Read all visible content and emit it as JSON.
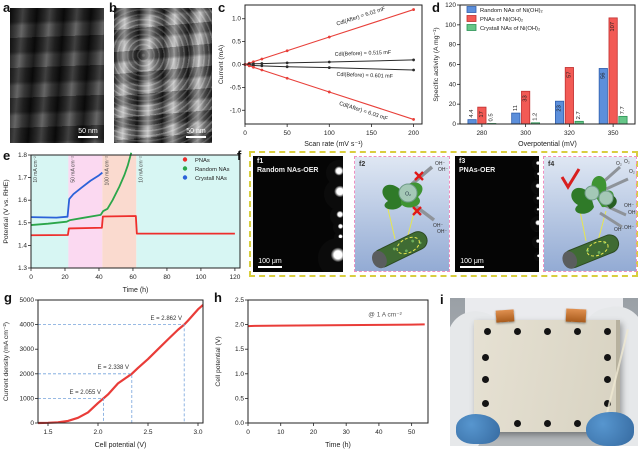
{
  "letters": {
    "a": "a",
    "b": "b",
    "c": "c",
    "d": "d",
    "e": "e",
    "f": "f",
    "g": "g",
    "h": "h",
    "i": "i"
  },
  "panel_a": {
    "scale_bar": "50 nm"
  },
  "panel_b": {
    "scale_bar": "50 nm"
  },
  "panel_f": {
    "f1": {
      "label": "f1",
      "title": "Random NAs-OER",
      "scale_bar": "100 μm"
    },
    "f2": {
      "label": "f2",
      "oh": "OH⁻",
      "o2": "O₂"
    },
    "f3": {
      "label": "f3",
      "title": "PNAs-OER",
      "scale_bar": "100 μm"
    },
    "f4": {
      "label": "f4",
      "oh": "OH⁻",
      "o2": "O₂"
    }
  },
  "chart_data": [
    {
      "id": "c",
      "type": "scatter",
      "title": "",
      "xlabel": "Scan rate (mV s⁻¹)",
      "ylabel": "Current (mA)",
      "xlim": [
        0,
        210
      ],
      "ylim": [
        -1.3,
        1.3
      ],
      "xticks": [
        0,
        50,
        100,
        150,
        200
      ],
      "yticks": [
        -1.0,
        -0.5,
        0.0,
        0.5,
        1.0
      ],
      "xdec": 0,
      "ydec": 1,
      "margins": {
        "l": 30,
        "r": 8,
        "t": 5,
        "b": 25
      },
      "series": [
        {
          "name": "Cdl(After) anodic",
          "color": "#e8403a",
          "marker": true,
          "width": 1.1,
          "points": [
            [
              0,
              0
            ],
            [
              5,
              0.03
            ],
            [
              10,
              0.06
            ],
            [
              20,
              0.12
            ],
            [
              50,
              0.3
            ],
            [
              100,
              0.6
            ],
            [
              200,
              1.2
            ]
          ]
        },
        {
          "name": "Cdl(Before) anodic",
          "color": "#2b2b2b",
          "marker": true,
          "width": 1.0,
          "points": [
            [
              0,
              0
            ],
            [
              5,
              0.01
            ],
            [
              10,
              0.015
            ],
            [
              20,
              0.02
            ],
            [
              50,
              0.035
            ],
            [
              100,
              0.055
            ],
            [
              200,
              0.1
            ]
          ]
        },
        {
          "name": "Cdl(Before) cathodic",
          "color": "#2b2b2b",
          "marker": true,
          "width": 1.0,
          "points": [
            [
              0,
              0
            ],
            [
              5,
              -0.012
            ],
            [
              10,
              -0.02
            ],
            [
              20,
              -0.03
            ],
            [
              50,
              -0.048
            ],
            [
              100,
              -0.068
            ],
            [
              200,
              -0.12
            ]
          ]
        },
        {
          "name": "Cdl(After) cathodic",
          "color": "#e8403a",
          "marker": true,
          "width": 1.1,
          "points": [
            [
              0,
              0
            ],
            [
              5,
              -0.03
            ],
            [
              10,
              -0.06
            ],
            [
              20,
              -0.12
            ],
            [
              50,
              -0.3
            ],
            [
              100,
              -0.6
            ],
            [
              200,
              -1.2
            ]
          ]
        }
      ],
      "annotations": [
        {
          "x": 138,
          "y": 1.02,
          "text": "Cdl(After) = 6.02 mF",
          "rotate": -18,
          "size": 5.6,
          "color": "#222"
        },
        {
          "x": 140,
          "y": 0.21,
          "text": "Cdl(Before) = 0.515 mF",
          "rotate": -2,
          "size": 5.4,
          "color": "#222"
        },
        {
          "x": 142,
          "y": -0.27,
          "text": "Cdl(Before) = 0.601 mF",
          "rotate": 2,
          "size": 5.4,
          "color": "#222"
        },
        {
          "x": 140,
          "y": -1.05,
          "text": "Cdl(After) = 6.03 mF",
          "rotate": 18,
          "size": 5.6,
          "color": "#222"
        }
      ]
    },
    {
      "id": "d",
      "type": "bar",
      "title": "",
      "xlabel": "Overpotential (mV)",
      "ylabel": "Specific activity (A mg⁻¹)",
      "categories": [
        "280",
        "300",
        "320",
        "350"
      ],
      "xlim": [
        0,
        1
      ],
      "ylim": [
        0,
        120
      ],
      "yticks": [
        0,
        20,
        40,
        60,
        80,
        100,
        120
      ],
      "ydec": 0,
      "margins": {
        "l": 30,
        "r": 5,
        "t": 5,
        "b": 25
      },
      "series": [
        {
          "name": "Random NAs of Ni(OH)₂",
          "color": "#5c8fdb",
          "border": "#2f5fae",
          "values": [
            4.4,
            11,
            23,
            56
          ],
          "value_labels": [
            "4.4",
            "11",
            "23",
            "56"
          ]
        },
        {
          "name": "PNAs of Ni(OH)₂",
          "color": "#f25a55",
          "border": "#c03030",
          "values": [
            17,
            33,
            57,
            107
          ],
          "value_labels": [
            "17",
            "33",
            "57",
            "107"
          ]
        },
        {
          "name": "Crystall NAs of Ni(OH)₂",
          "color": "#66c688",
          "border": "#2c9355",
          "values": [
            0.5,
            1.2,
            2.7,
            7.7
          ],
          "value_labels": [
            "0.5",
            "1.2",
            "2.7",
            "7.7"
          ]
        }
      ],
      "legend": {
        "pos": "tl",
        "marker": "square",
        "w": 92,
        "items": [
          {
            "label": "Random NAs of Ni(OH)₂",
            "color": "#5c8fdb",
            "border": "#2f5fae"
          },
          {
            "label": "PNAs of Ni(OH)₂",
            "color": "#f25a55",
            "border": "#c03030"
          },
          {
            "label": "Crystall NAs of Ni(OH)₂",
            "color": "#66c688",
            "border": "#2c9355"
          }
        ]
      }
    },
    {
      "id": "e",
      "type": "line",
      "title": "",
      "xlabel": "Time (h)",
      "ylabel": "Potential (V vs. RHE)",
      "xlim": [
        0,
        123
      ],
      "ylim": [
        1.3,
        1.8
      ],
      "xticks": [
        0,
        20,
        40,
        60,
        80,
        100,
        120
      ],
      "yticks": [
        1.3,
        1.4,
        1.5,
        1.6,
        1.7,
        1.8
      ],
      "xdec": 0,
      "ydec": 1,
      "margins": {
        "l": 31,
        "r": 6,
        "t": 5,
        "b": 27
      },
      "regions": [
        {
          "x0": 0,
          "x1": 22,
          "color": "#d7f6f3",
          "label": "10 mA cm⁻²"
        },
        {
          "x0": 22,
          "x1": 42,
          "color": "#fbd9f1",
          "label": "50 mA cm⁻²"
        },
        {
          "x0": 42,
          "x1": 62,
          "color": "#fadacf",
          "label": "100 mA cm⁻²"
        },
        {
          "x0": 62,
          "x1": 123,
          "color": "#d7f6f3",
          "label": "10 mA cm⁻²"
        }
      ],
      "series": [
        {
          "name": "PNAs",
          "color": "#ee2e2c",
          "width": 1.8,
          "points": [
            [
              0,
              1.445
            ],
            [
              21.7,
              1.446
            ],
            [
              22.3,
              1.475
            ],
            [
              41.7,
              1.478
            ],
            [
              42.3,
              1.528
            ],
            [
              61.7,
              1.53
            ],
            [
              62.3,
              1.452
            ],
            [
              120,
              1.452
            ]
          ]
        },
        {
          "name": "Random NAs",
          "color": "#2ba64a",
          "width": 1.8,
          "points": [
            [
              0,
              1.49
            ],
            [
              10,
              1.496
            ],
            [
              21,
              1.505
            ],
            [
              23,
              1.512
            ],
            [
              30,
              1.521
            ],
            [
              41,
              1.535
            ],
            [
              42.5,
              1.552
            ],
            [
              45,
              1.562
            ],
            [
              48,
              1.6
            ],
            [
              52,
              1.66
            ],
            [
              55,
              1.712
            ],
            [
              57,
              1.755
            ],
            [
              59,
              1.81
            ]
          ]
        },
        {
          "name": "Crystall NAs",
          "color": "#2b62d9",
          "width": 1.8,
          "points": [
            [
              0,
              1.525
            ],
            [
              15,
              1.523
            ],
            [
              21.5,
              1.527
            ],
            [
              22.5,
              1.605
            ],
            [
              25,
              1.627
            ],
            [
              30,
              1.657
            ],
            [
              35,
              1.686
            ],
            [
              40,
              1.71
            ],
            [
              42,
              1.722
            ]
          ]
        }
      ],
      "legend": {
        "pos": "tr",
        "marker": "dot",
        "w": 58,
        "items": [
          {
            "label": "PNAs",
            "color": "#ee2e2c"
          },
          {
            "label": "Random NAs",
            "color": "#2ba64a"
          },
          {
            "label": "Crystall NAs",
            "color": "#2b62d9"
          }
        ]
      },
      "annotations": [
        {
          "x": 3.5,
          "y": 1.795,
          "text": "10 mA cm⁻²",
          "rotate": -90,
          "anchor": "end",
          "size": 5,
          "color": "#444"
        },
        {
          "x": 25.5,
          "y": 1.795,
          "text": "50 mA cm⁻²",
          "rotate": -90,
          "anchor": "end",
          "size": 5,
          "color": "#444"
        },
        {
          "x": 45.5,
          "y": 1.795,
          "text": "100 mA cm⁻²",
          "rotate": -90,
          "anchor": "end",
          "size": 5,
          "color": "#444"
        },
        {
          "x": 65.5,
          "y": 1.795,
          "text": "10 mA cm⁻²",
          "rotate": -90,
          "anchor": "end",
          "size": 5,
          "color": "#444"
        }
      ]
    },
    {
      "id": "g",
      "type": "line",
      "title": "",
      "xlabel": "Cell potential (V)",
      "ylabel": "Current density (mA cm⁻²)",
      "xlim": [
        1.4,
        3.05
      ],
      "ylim": [
        0,
        5000
      ],
      "xticks": [
        1.5,
        2.0,
        2.5,
        3.0
      ],
      "yticks": [
        0,
        1000,
        2000,
        3000,
        4000,
        5000
      ],
      "xdec": 1,
      "ydec": 0,
      "margins": {
        "l": 38,
        "r": 9,
        "t": 8,
        "b": 27
      },
      "guide_color": "#76a3dc",
      "guides": [
        {
          "x": 2.055,
          "y": 1000
        },
        {
          "x": 2.338,
          "y": 2000
        },
        {
          "x": 2.862,
          "y": 4000
        }
      ],
      "series": [
        {
          "name": "polarization curve",
          "color": "#e93c38",
          "width": 2.2,
          "points": [
            [
              1.4,
              0
            ],
            [
              1.5,
              8
            ],
            [
              1.6,
              25
            ],
            [
              1.7,
              85
            ],
            [
              1.8,
              210
            ],
            [
              1.9,
              430
            ],
            [
              2.0,
              810
            ],
            [
              2.055,
              1000
            ],
            [
              2.1,
              1160
            ],
            [
              2.2,
              1610
            ],
            [
              2.338,
              2000
            ],
            [
              2.4,
              2240
            ],
            [
              2.5,
              2600
            ],
            [
              2.6,
              3000
            ],
            [
              2.7,
              3400
            ],
            [
              2.8,
              3790
            ],
            [
              2.862,
              4000
            ],
            [
              2.9,
              4160
            ],
            [
              3.0,
              4620
            ],
            [
              3.05,
              4800
            ]
          ]
        }
      ],
      "annotations": [
        {
          "x": 2.03,
          "y": 1180,
          "text": "E = 2.055 V",
          "anchor": "end",
          "size": 6,
          "color": "#333"
        },
        {
          "x": 2.31,
          "y": 2190,
          "text": "E = 2.338 V",
          "anchor": "end",
          "size": 6,
          "color": "#333"
        },
        {
          "x": 2.84,
          "y": 4190,
          "text": "E = 2.862 V",
          "anchor": "end",
          "size": 6,
          "color": "#333"
        }
      ]
    },
    {
      "id": "h",
      "type": "line",
      "title": "",
      "xlabel": "Time (h)",
      "ylabel": "Cell potential (V)",
      "xlim": [
        0,
        55
      ],
      "ylim": [
        0,
        2.5
      ],
      "xticks": [
        0,
        10,
        20,
        30,
        40,
        50
      ],
      "yticks": [
        0.0,
        0.5,
        1.0,
        1.5,
        2.0,
        2.5
      ],
      "xdec": 0,
      "ydec": 1,
      "margins": {
        "l": 36,
        "r": 12,
        "t": 8,
        "b": 27
      },
      "series": [
        {
          "name": "@ 1 A cm⁻²",
          "color": "#e93c38",
          "width": 2.0,
          "points": [
            [
              0,
              1.97
            ],
            [
              2,
              1.975
            ],
            [
              10,
              1.98
            ],
            [
              20,
              1.985
            ],
            [
              30,
              1.99
            ],
            [
              40,
              1.995
            ],
            [
              50,
              2.0
            ],
            [
              54,
              2.005
            ]
          ]
        }
      ],
      "annotations": [
        {
          "x": 47,
          "y": 2.16,
          "text": "@ 1 A cm⁻²",
          "anchor": "end",
          "size": 6.5,
          "color": "#555"
        }
      ]
    }
  ]
}
